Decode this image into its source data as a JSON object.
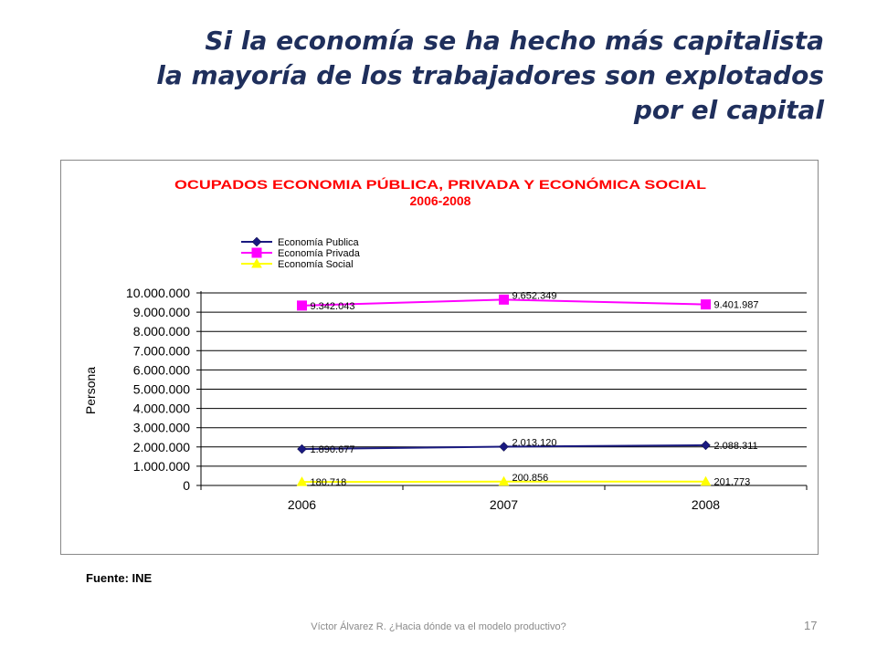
{
  "slide": {
    "title_lines": [
      "Si la economía se ha hecho más capitalista",
      "la mayoría de los trabajadores son explotados",
      "por el capital"
    ],
    "source": "Fuente: INE",
    "footer": "Víctor Álvarez R. ¿Hacia dónde va el modelo productivo?",
    "page_number": "17"
  },
  "chart_data": {
    "type": "line",
    "title": "OCUPADOS ECONOMIA PÚBLICA, PRIVADA Y ECONÓMICA SOCIAL",
    "subtitle": "2006-2008",
    "ylabel": "Persona",
    "xlabel": "",
    "categories": [
      "2006",
      "2007",
      "2008"
    ],
    "ylim": [
      0,
      10000000
    ],
    "yticks": [
      "0",
      "1.000.000",
      "2.000.000",
      "3.000.000",
      "4.000.000",
      "5.000.000",
      "6.000.000",
      "7.000.000",
      "8.000.000",
      "9.000.000",
      "10.000.000"
    ],
    "grid": true,
    "legend_position": "top-left",
    "series": [
      {
        "name": "Economía Publica",
        "color": "#1a1a80",
        "marker": "diamond",
        "values": [
          1890677,
          2013120,
          2088311
        ],
        "labels": [
          "1.890.677",
          "2.013.120",
          "2.088.311"
        ]
      },
      {
        "name": "Economía Privada",
        "color": "#ff00ff",
        "marker": "square",
        "values": [
          9342043,
          9652349,
          9401987
        ],
        "labels": [
          "9.342.043",
          "9.652.349",
          "9.401.987"
        ]
      },
      {
        "name": "Economía Social",
        "color": "#ffff00",
        "marker": "triangle",
        "values": [
          180718,
          200856,
          201773
        ],
        "labels": [
          "180.718",
          "200.856",
          "201.773"
        ]
      }
    ],
    "title_color": "#ff0000"
  }
}
